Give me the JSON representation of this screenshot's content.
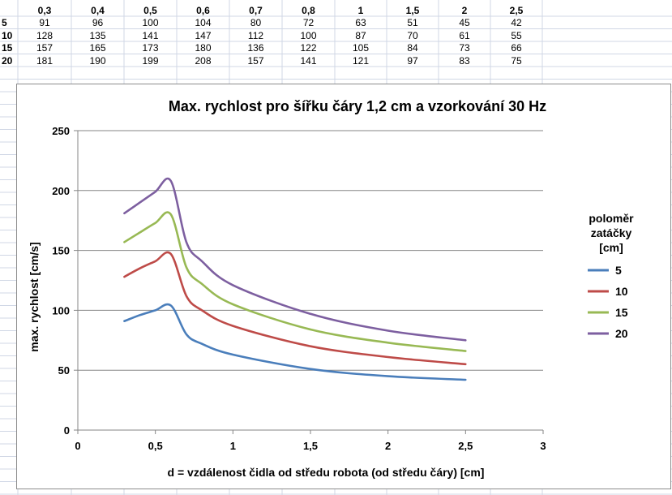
{
  "colors": {
    "series_5": "#4a7ebb",
    "series_10": "#be4b48",
    "series_15": "#98b954",
    "series_20": "#7d5fa0",
    "gridline": "#868686",
    "sheet_grid": "#d0d7e5"
  },
  "sheet": {
    "header": [
      "0,3",
      "0,4",
      "0,5",
      "0,6",
      "0,7",
      "0,8",
      "1",
      "1,5",
      "2",
      "2,5"
    ],
    "rows": [
      {
        "label": "5",
        "values": [
          "91",
          "96",
          "100",
          "104",
          "80",
          "72",
          "63",
          "51",
          "45",
          "42"
        ]
      },
      {
        "label": "10",
        "values": [
          "128",
          "135",
          "141",
          "147",
          "112",
          "100",
          "87",
          "70",
          "61",
          "55"
        ]
      },
      {
        "label": "15",
        "values": [
          "157",
          "165",
          "173",
          "180",
          "136",
          "122",
          "105",
          "84",
          "73",
          "66"
        ]
      },
      {
        "label": "20",
        "values": [
          "181",
          "190",
          "199",
          "208",
          "157",
          "141",
          "121",
          "97",
          "83",
          "75"
        ]
      }
    ]
  },
  "chart_data": {
    "type": "line",
    "title": "Max. rychlost pro šířku čáry 1,2 cm a vzorkování 30 Hz",
    "xlabel": "d = vzdálenost čidla od středu robota (od středu čáry) [cm]",
    "ylabel": "max. rychlost [cm/s]",
    "xlim": [
      0,
      3
    ],
    "ylim": [
      0,
      250
    ],
    "xticks": [
      "0",
      "0,5",
      "1",
      "1,5",
      "2",
      "2,5",
      "3"
    ],
    "yticks": [
      "0",
      "50",
      "100",
      "150",
      "200",
      "250"
    ],
    "grid": "horizontal",
    "smooth": true,
    "legend_position": "right",
    "legend_title": [
      "poloměr",
      "zatáčky",
      "[cm]"
    ],
    "x": [
      0.3,
      0.4,
      0.5,
      0.6,
      0.7,
      0.8,
      1,
      1.5,
      2,
      2.5
    ],
    "series": [
      {
        "name": "5",
        "color": "#4a7ebb",
        "values": [
          91,
          96,
          100,
          104,
          80,
          72,
          63,
          51,
          45,
          42
        ]
      },
      {
        "name": "10",
        "color": "#be4b48",
        "values": [
          128,
          135,
          141,
          147,
          112,
          100,
          87,
          70,
          61,
          55
        ]
      },
      {
        "name": "15",
        "color": "#98b954",
        "values": [
          157,
          165,
          173,
          180,
          136,
          122,
          105,
          84,
          73,
          66
        ]
      },
      {
        "name": "20",
        "color": "#7d5fa0",
        "values": [
          181,
          190,
          199,
          208,
          157,
          141,
          121,
          97,
          83,
          75
        ]
      }
    ]
  }
}
